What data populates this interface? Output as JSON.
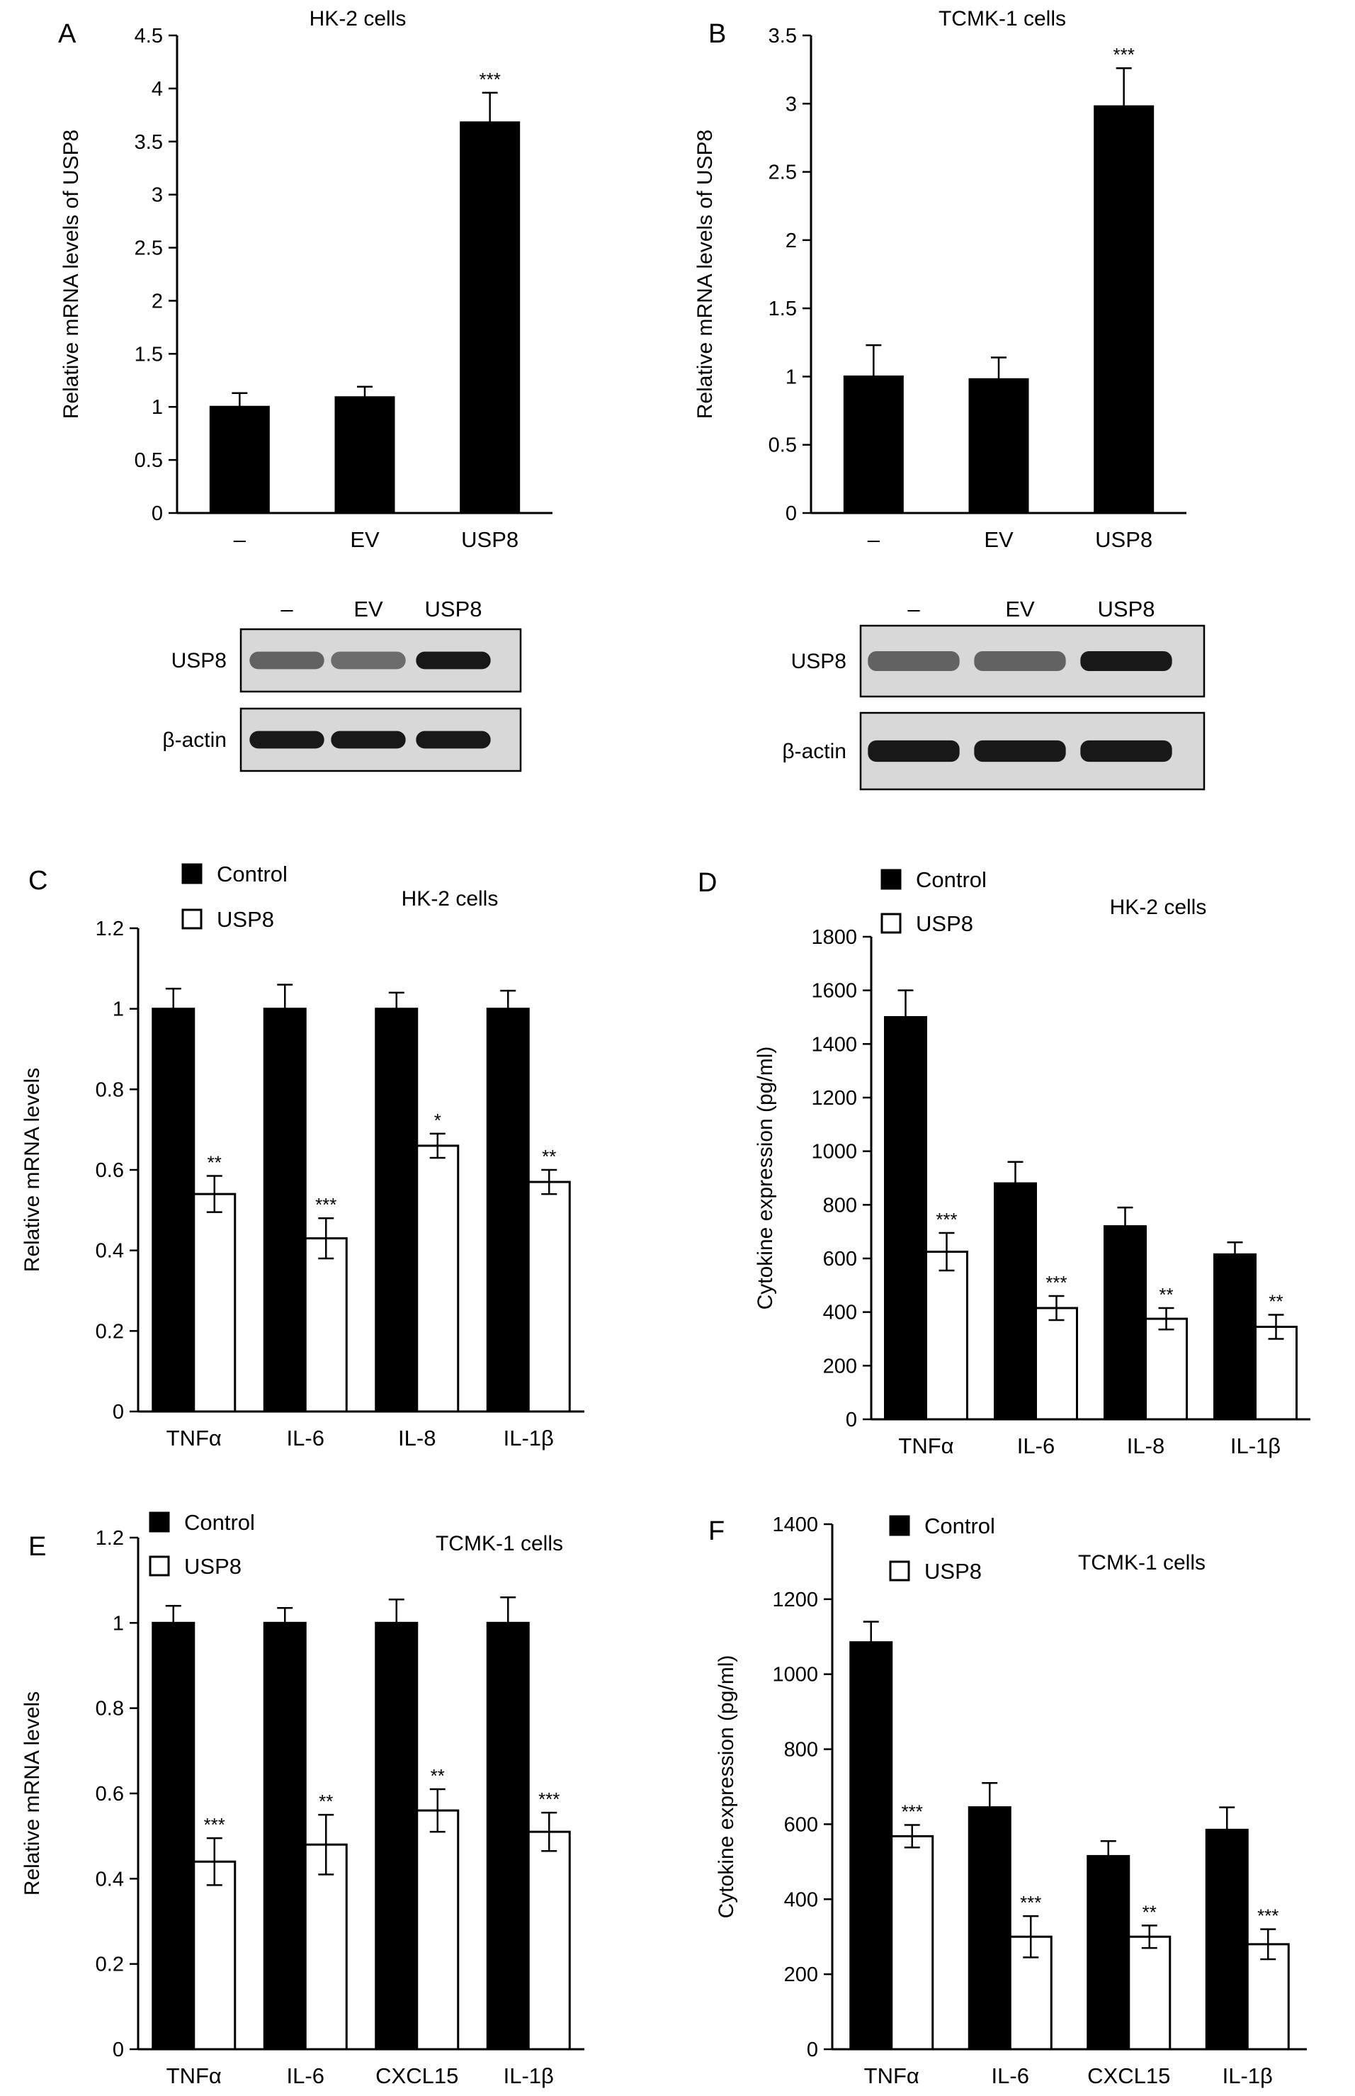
{
  "colors": {
    "control": "#000000",
    "usp8": "#ffffff",
    "axis": "#000000",
    "band": "#1a1a1a",
    "blot_bg": "#d8d8d8"
  },
  "blots": [
    {
      "panel": "A",
      "lanes": [
        "–",
        "EV",
        "USP8"
      ],
      "rows": [
        {
          "label": "USP8",
          "intensity": [
            0.55,
            0.5,
            0.95
          ]
        },
        {
          "label": "β-actin",
          "intensity": [
            0.95,
            0.95,
            0.95
          ]
        }
      ]
    },
    {
      "panel": "B",
      "lanes": [
        "–",
        "EV",
        "USP8"
      ],
      "rows": [
        {
          "label": "USP8",
          "intensity": [
            0.55,
            0.55,
            0.95
          ]
        },
        {
          "label": "β-actin",
          "intensity": [
            0.95,
            0.95,
            0.95
          ]
        }
      ]
    }
  ],
  "chart_data": [
    {
      "panel": "A",
      "type": "bar",
      "title": "HK-2 cells",
      "xlabel": "",
      "ylabel": "Relative mRNA levels of USP8",
      "ylim": [
        0,
        4.5
      ],
      "ytick_step": 0.5,
      "yticks": [
        "0",
        "0.5",
        "1",
        "1.5",
        "2",
        "2.5",
        "3",
        "3.5",
        "4",
        "4.5"
      ],
      "categories": [
        "–",
        "EV",
        "USP8"
      ],
      "series": [
        {
          "values": [
            1.0,
            1.09,
            3.68
          ],
          "errors": [
            0.13,
            0.1,
            0.28
          ],
          "significance": [
            "",
            "",
            "***"
          ]
        }
      ],
      "legend": []
    },
    {
      "panel": "B",
      "type": "bar",
      "title": "TCMK-1 cells",
      "xlabel": "",
      "ylabel": "Relative mRNA levels of USP8",
      "ylim": [
        0,
        3.5
      ],
      "ytick_step": 0.5,
      "yticks": [
        "0",
        "0.5",
        "1",
        "1.5",
        "2",
        "2.5",
        "3",
        "3.5"
      ],
      "categories": [
        "–",
        "EV",
        "USP8"
      ],
      "series": [
        {
          "values": [
            1.0,
            0.98,
            2.98
          ],
          "errors": [
            0.23,
            0.16,
            0.28
          ],
          "significance": [
            "",
            "",
            "***"
          ]
        }
      ],
      "legend": []
    },
    {
      "panel": "C",
      "type": "bar",
      "title": "HK-2 cells",
      "xlabel": "",
      "ylabel": "Relative mRNA levels",
      "ylim": [
        0,
        1.2
      ],
      "ytick_step": 0.2,
      "yticks": [
        "0",
        "0.2",
        "0.4",
        "0.6",
        "0.8",
        "1",
        "1.2"
      ],
      "categories": [
        "TNFα",
        "IL-6",
        "IL-8",
        "IL-1β"
      ],
      "series": [
        {
          "name": "Control",
          "values": [
            1.0,
            1.0,
            1.0,
            1.0
          ],
          "errors": [
            0.05,
            0.06,
            0.04,
            0.045
          ],
          "significance": [
            "",
            "",
            "",
            ""
          ]
        },
        {
          "name": "USP8",
          "values": [
            0.54,
            0.43,
            0.66,
            0.57
          ],
          "errors": [
            0.045,
            0.05,
            0.03,
            0.03
          ],
          "significance": [
            "**",
            "***",
            "*",
            "**"
          ]
        }
      ],
      "legend": [
        "Control",
        "USP8"
      ]
    },
    {
      "panel": "D",
      "type": "bar",
      "title": "HK-2 cells",
      "xlabel": "",
      "ylabel": "Cytokine expression (pg/ml)",
      "ylim": [
        0,
        1800
      ],
      "ytick_step": 200,
      "yticks": [
        "0",
        "200",
        "400",
        "600",
        "800",
        "1000",
        "1200",
        "1400",
        "1600",
        "1800"
      ],
      "categories": [
        "TNFα",
        "IL-6",
        "IL-8",
        "IL-1β"
      ],
      "series": [
        {
          "name": "Control",
          "values": [
            1500,
            880,
            720,
            615
          ],
          "errors": [
            100,
            80,
            70,
            45
          ],
          "significance": [
            "",
            "",
            "",
            ""
          ]
        },
        {
          "name": "USP8",
          "values": [
            625,
            415,
            375,
            345
          ],
          "errors": [
            70,
            45,
            40,
            45
          ],
          "significance": [
            "***",
            "***",
            "**",
            "**"
          ]
        }
      ],
      "legend": [
        "Control",
        "USP8"
      ]
    },
    {
      "panel": "E",
      "type": "bar",
      "title": "TCMK-1 cells",
      "xlabel": "",
      "ylabel": "Relative mRNA levels",
      "ylim": [
        0,
        1.2
      ],
      "ytick_step": 0.2,
      "yticks": [
        "0",
        "0.2",
        "0.4",
        "0.6",
        "0.8",
        "1",
        "1.2"
      ],
      "categories": [
        "TNFα",
        "IL-6",
        "CXCL15",
        "IL-1β"
      ],
      "series": [
        {
          "name": "Control",
          "values": [
            1.0,
            1.0,
            1.0,
            1.0
          ],
          "errors": [
            0.04,
            0.035,
            0.055,
            0.06
          ],
          "significance": [
            "",
            "",
            "",
            ""
          ]
        },
        {
          "name": "USP8",
          "values": [
            0.44,
            0.48,
            0.56,
            0.51
          ],
          "errors": [
            0.055,
            0.07,
            0.05,
            0.045
          ],
          "significance": [
            "***",
            "**",
            "**",
            "***"
          ]
        }
      ],
      "legend": [
        "Control",
        "USP8"
      ]
    },
    {
      "panel": "F",
      "type": "bar",
      "title": "TCMK-1 cells",
      "xlabel": "",
      "ylabel": "Cytokine expression (pg/ml)",
      "ylim": [
        0,
        1400
      ],
      "ytick_step": 200,
      "yticks": [
        "0",
        "200",
        "400",
        "600",
        "800",
        "1000",
        "1200",
        "1400"
      ],
      "categories": [
        "TNFα",
        "IL-6",
        "CXCL15",
        "IL-1β"
      ],
      "series": [
        {
          "name": "Control",
          "values": [
            1085,
            645,
            515,
            585
          ],
          "errors": [
            55,
            65,
            40,
            60
          ],
          "significance": [
            "",
            "",
            "",
            ""
          ]
        },
        {
          "name": "USP8",
          "values": [
            568,
            300,
            300,
            280
          ],
          "errors": [
            30,
            55,
            30,
            40
          ],
          "significance": [
            "***",
            "***",
            "**",
            "***"
          ]
        }
      ],
      "legend": [
        "Control",
        "USP8"
      ]
    }
  ]
}
